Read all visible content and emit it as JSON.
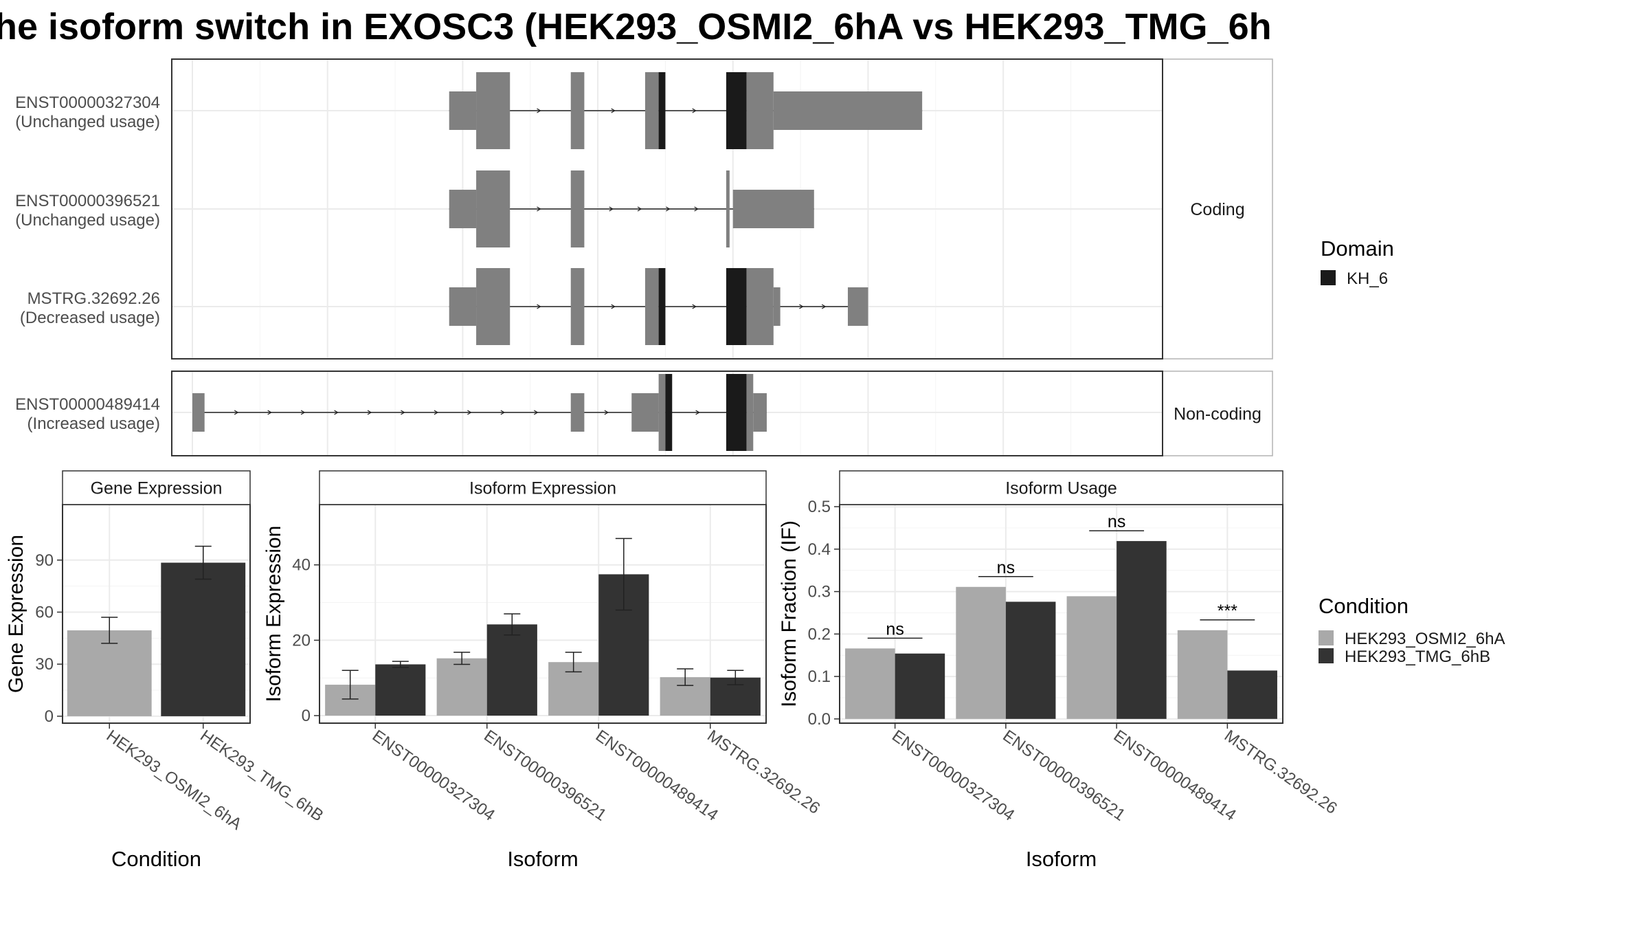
{
  "title": "he isoform switch in EXOSC3 (HEK293_OSMI2_6hA vs HEK293_TMG_6h",
  "colors": {
    "exon": "#808080",
    "domain": "#1a1a1a",
    "condA": "#a9a9a9",
    "condB": "#333333",
    "grid": "#ebebeb",
    "border": "#333333",
    "strip_border": "#b3b3b3"
  },
  "structure": {
    "facets": [
      "Coding",
      "Non-coding"
    ],
    "transcripts": [
      {
        "id": "ENST00000327304",
        "usage": "(Unchanged usage)",
        "facet": "Coding",
        "coding_exons": [
          [
            42,
            47
          ],
          [
            56,
            58
          ],
          [
            67,
            69
          ],
          [
            82,
            86
          ]
        ],
        "domain_segments": [
          [
            69,
            70
          ],
          [
            79,
            82
          ]
        ],
        "utr5": [
          [
            38,
            42
          ]
        ],
        "utr3": [
          [
            86,
            108
          ]
        ]
      },
      {
        "id": "ENST00000396521",
        "usage": "(Unchanged usage)",
        "facet": "Coding",
        "coding_exons": [
          [
            42,
            47
          ],
          [
            56,
            58
          ],
          [
            79,
            79.5
          ]
        ],
        "domain_segments": [],
        "utr5": [
          [
            38,
            42
          ]
        ],
        "utr3": [
          [
            80,
            92
          ]
        ]
      },
      {
        "id": "MSTRG.32692.26",
        "usage": "(Decreased usage)",
        "facet": "Coding",
        "coding_exons": [
          [
            42,
            47
          ],
          [
            56,
            58
          ],
          [
            67,
            69
          ],
          [
            82,
            86
          ]
        ],
        "domain_segments": [
          [
            69,
            70
          ],
          [
            79,
            82
          ]
        ],
        "utr5": [
          [
            38,
            42
          ]
        ],
        "utr3": [
          [
            86,
            87
          ],
          [
            97,
            100
          ]
        ]
      },
      {
        "id": "ENST00000489414",
        "usage": "(Increased usage)",
        "facet": "Non-coding",
        "coding_exons": [
          [
            69,
            70
          ],
          [
            82,
            83
          ]
        ],
        "domain_segments": [
          [
            70,
            71
          ],
          [
            79,
            82
          ]
        ],
        "utr5": [
          [
            0,
            1.8
          ],
          [
            56,
            58
          ],
          [
            65,
            69
          ]
        ],
        "utr3": [
          [
            83,
            85
          ]
        ]
      }
    ],
    "domain_legend": {
      "title": "Domain",
      "items": [
        "KH_6"
      ]
    }
  },
  "condition_legend": {
    "title": "Condition",
    "items": [
      "HEK293_OSMI2_6hA",
      "HEK293_TMG_6hB"
    ]
  },
  "chart_data": [
    {
      "type": "bar",
      "strip": "Gene Expression",
      "xlabel": "Condition",
      "ylabel": "Gene Expression",
      "categories": [
        "HEK293_OSMI2_6hA",
        "HEK293_TMG_6hB"
      ],
      "values": [
        49.5,
        88.5
      ],
      "errors": [
        [
          42,
          57
        ],
        [
          79,
          98
        ]
      ],
      "ylim": [
        -4,
        122
      ],
      "yticks": [
        0,
        30,
        60,
        90
      ]
    },
    {
      "type": "bar",
      "strip": "Isoform Expression",
      "xlabel": "Isoform",
      "ylabel": "Isoform Expression",
      "categories": [
        "ENST00000327304",
        "ENST00000396521",
        "ENST00000489414",
        "MSTRG.32692.26"
      ],
      "series": [
        {
          "name": "HEK293_OSMI2_6hA",
          "values": [
            8.2,
            15.2,
            14.2,
            10.2
          ],
          "errors": [
            [
              4.4,
              12
            ],
            [
              13.6,
              16.8
            ],
            [
              11.6,
              16.8
            ],
            [
              8,
              12.4
            ]
          ]
        },
        {
          "name": "HEK293_TMG_6hB",
          "values": [
            13.6,
            24.2,
            37.5,
            10.1
          ],
          "errors": [
            [
              12.8,
              14.4
            ],
            [
              21.4,
              27
            ],
            [
              28,
              47
            ],
            [
              8.2,
              12
            ]
          ]
        }
      ],
      "ylim": [
        -2,
        56
      ],
      "yticks": [
        0,
        20,
        40
      ]
    },
    {
      "type": "bar",
      "strip": "Isoform Usage",
      "xlabel": "Isoform",
      "ylabel": "Isoform Fraction (IF)",
      "categories": [
        "ENST00000327304",
        "ENST00000396521",
        "ENST00000489414",
        "MSTRG.32692.26"
      ],
      "series": [
        {
          "name": "HEK293_OSMI2_6hA",
          "values": [
            0.166,
            0.311,
            0.289,
            0.209
          ]
        },
        {
          "name": "HEK293_TMG_6hB",
          "values": [
            0.154,
            0.276,
            0.419,
            0.114
          ]
        }
      ],
      "significance": [
        "ns",
        "ns",
        "ns",
        "***"
      ],
      "ylim": [
        -0.01,
        0.505
      ],
      "yticks": [
        0.0,
        0.1,
        0.2,
        0.3,
        0.4,
        0.5
      ],
      "ytick_labels": [
        "0.0",
        "0.1",
        "0.2",
        "0.3",
        "0.4",
        "0.5"
      ]
    }
  ]
}
